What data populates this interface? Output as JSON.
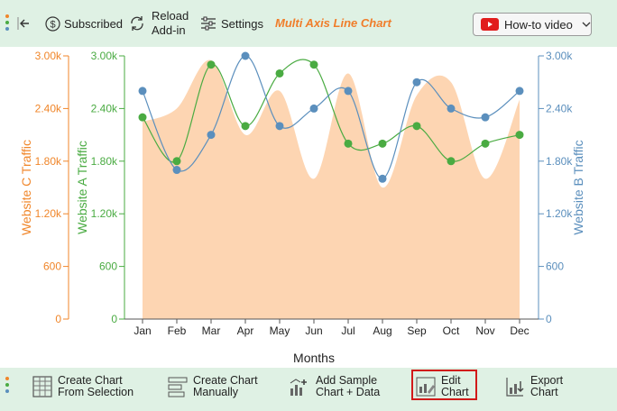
{
  "toolbar": {
    "subscribed_label": "Subscribed",
    "reload_label": "Reload\nAdd-in",
    "settings_label": "Settings",
    "title": "Multi Axis Line Chart",
    "howto_label": "How-to video"
  },
  "bottom_toolbar": {
    "create_selection_label": "Create Chart\nFrom Selection",
    "create_manual_label": "Create Chart\nManually",
    "add_sample_label": "Add Sample\nChart + Data",
    "edit_chart_label": "Edit\nChart",
    "export_chart_label": "Export\nChart"
  },
  "colors": {
    "bar_bg": "#dff1e4",
    "series_a": "#4aab42",
    "series_b": "#5b8fbd",
    "series_c": "#f0862a",
    "area_fill": "#fdd5b2",
    "title_color": "#f07d2a",
    "highlight": "#d11a1a"
  },
  "icons": [
    "back-arrow-icon",
    "dollar-icon",
    "refresh-icon",
    "sliders-icon",
    "youtube-icon",
    "chevron-down-icon",
    "table-icon",
    "list-icon",
    "chart-sample-icon",
    "edit-chart-icon",
    "export-icon"
  ],
  "chart_data": {
    "type": "line",
    "categories": [
      "Jan",
      "Feb",
      "Mar",
      "Apr",
      "May",
      "Jun",
      "Jul",
      "Aug",
      "Sep",
      "Oct",
      "Nov",
      "Dec"
    ],
    "xlabel": "Months",
    "series": [
      {
        "name": "Website A Traffic",
        "axis": "left-inner",
        "values": [
          2300,
          1800,
          2900,
          2200,
          2800,
          2900,
          2000,
          2000,
          2200,
          1800,
          2000,
          2100
        ]
      },
      {
        "name": "Website B Traffic",
        "axis": "right",
        "values": [
          2600,
          1700,
          2100,
          3000,
          2200,
          2400,
          2600,
          1600,
          2700,
          2400,
          2300,
          2600
        ]
      },
      {
        "name": "Website C Traffic",
        "axis": "left-outer",
        "chart_style": "area",
        "values": [
          2250,
          2400,
          2950,
          2100,
          2600,
          1600,
          2800,
          1500,
          2550,
          2700,
          1600,
          2500
        ]
      }
    ],
    "axes": {
      "left_outer": {
        "label": "Website C Traffic",
        "ticks": [
          "0",
          "600",
          "1.20k",
          "1.80k",
          "2.40k",
          "3.00k"
        ],
        "range": [
          0,
          3000
        ]
      },
      "left_inner": {
        "label": "Website A Traffic",
        "ticks": [
          "0",
          "600",
          "1.20k",
          "1.80k",
          "2.40k",
          "3.00k"
        ],
        "range": [
          0,
          3000
        ]
      },
      "right": {
        "label": "Website B Traffic",
        "ticks": [
          "0",
          "600",
          "1.20k",
          "1.80k",
          "2.40k",
          "3.00k"
        ],
        "range": [
          0,
          3000
        ]
      }
    },
    "grid": false
  }
}
